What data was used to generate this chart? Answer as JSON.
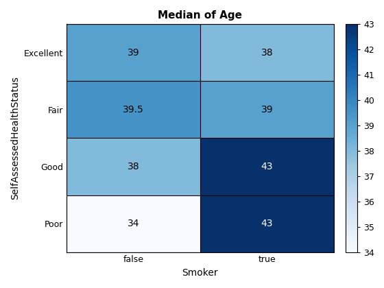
{
  "title": "Median of Age",
  "xlabel": "Smoker",
  "ylabel": "SelfAssessedHealthStatus",
  "x_labels": [
    "false",
    "true"
  ],
  "y_labels": [
    "Excellent",
    "Fair",
    "Good",
    "Poor"
  ],
  "values": [
    [
      39.0,
      38.0
    ],
    [
      39.5,
      39.0
    ],
    [
      38.0,
      43.0
    ],
    [
      34.0,
      43.0
    ]
  ],
  "text_values": [
    [
      "39",
      "38"
    ],
    [
      "39.5",
      "39"
    ],
    [
      "38",
      "43"
    ],
    [
      "34",
      "43"
    ]
  ],
  "vmin": 34,
  "vmax": 43,
  "cmap": "Blues",
  "colorbar_ticks": [
    34,
    35,
    36,
    37,
    38,
    39,
    40,
    41,
    42,
    43
  ],
  "title_fontsize": 11,
  "label_fontsize": 10,
  "tick_fontsize": 9,
  "cell_text_fontsize": 10,
  "figsize": [
    5.6,
    4.2
  ],
  "dpi": 100,
  "text_threshold": 0.65
}
